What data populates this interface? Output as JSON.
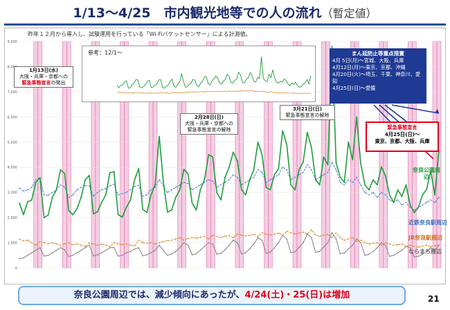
{
  "title": {
    "main": "1/13〜4/25　市内観光地等での人の流れ",
    "sub": "（暫定値）"
  },
  "note": "昨年１２月から導入し、試験運用を行っている「Wi-Fiパケットセンサー」による計測値。",
  "inset": {
    "label": "参考：12/1〜"
  },
  "callouts": [
    {
      "date": "1月13日(水)",
      "body": "大阪・兵庫・京都への",
      "em": "緊急事態宣言",
      "tail": "の発出"
    },
    {
      "date": "2月28日(日)",
      "body": "大阪・兵庫・京都への",
      "em": "",
      "tail": "緊急事態宣言の解除"
    },
    {
      "date": "3月21日(日)",
      "body": "",
      "em": "",
      "tail": "緊急事態宣言の解除"
    }
  ],
  "measures": {
    "heading": "まん延防止等重点措置",
    "lines": [
      "4月 5日(月)〜宮城、大阪、兵庫",
      "4月12日(月)〜東京、京都、沖縄",
      "4月20日(火)〜埼玉、千葉、神奈川、愛知",
      "4月25日(日)〜愛媛"
    ]
  },
  "emergency": {
    "heading": "緊急事態宣言",
    "date": "4月25日(日)〜",
    "areas": "東京、京都、大阪、兵庫"
  },
  "series_tags": {
    "park": "奈良公園周辺",
    "kintetsu": "近鉄奈良駅周辺",
    "jr": "JR奈良駅周辺",
    "naramachi": "ならまち周辺"
  },
  "footer": {
    "prefix": "奈良公園周辺では、減少傾向にあったが、",
    "highlight": "4/24(土)・25(日)は増加"
  },
  "page_number": "21",
  "colors": {
    "park": "#1e9e3a",
    "kintetsu": "#5b8bd6",
    "jr": "#e08a2e",
    "naramachi": "#8c8c8c",
    "band": "#f3c6df",
    "band_edge": "#e05aa0"
  },
  "chart_data": {
    "type": "line",
    "ylim": [
      0,
      9000
    ],
    "yticks": [
      0,
      1000,
      2000,
      3000,
      4000,
      5000,
      6000,
      7000,
      8000,
      9000
    ],
    "days": 103,
    "start_label": "1/13",
    "weekend_day_indices": [
      4,
      5,
      11,
      12,
      18,
      19,
      25,
      26,
      32,
      33,
      39,
      40,
      46,
      47,
      53,
      54,
      60,
      61,
      67,
      68,
      74,
      75,
      81,
      82,
      88,
      89,
      95,
      96,
      101,
      102
    ],
    "series": [
      {
        "key": "park",
        "name": "奈良公園周辺",
        "values": [
          2574,
          2116,
          2626,
          2700,
          3400,
          3588,
          1996,
          2100,
          2800,
          3100,
          3900,
          3750,
          2271,
          2110,
          2350,
          2800,
          3500,
          3674,
          2148,
          2233,
          2600,
          2900,
          3784,
          3826,
          2120,
          2015,
          2400,
          2700,
          3500,
          3950,
          2335,
          2200,
          2900,
          3300,
          5227,
          3426,
          2216,
          2300,
          2800,
          3100,
          3916,
          3734,
          2580,
          2300,
          3100,
          3500,
          4500,
          4409,
          2988,
          2700,
          3600,
          4000,
          4600,
          4250,
          3110,
          2900,
          3500,
          3900,
          5000,
          4500,
          3200,
          3100,
          3700,
          3942,
          5450,
          4900,
          3300,
          3100,
          3900,
          4202,
          5381,
          4800,
          3500,
          3300,
          4400,
          4100,
          8800,
          4177,
          3600,
          3400,
          5000,
          4300,
          6000,
          4131,
          3300,
          3100,
          3500,
          3300,
          4014,
          3657,
          2900,
          2600,
          3100,
          2839,
          3300,
          2500,
          2200,
          2400,
          2894,
          3120,
          3860,
          2900,
          4660
        ]
      },
      {
        "key": "kintetsu",
        "name": "近鉄奈良駅周辺",
        "values": [
          3174,
          3057,
          3100,
          3200,
          3500,
          3588,
          2900,
          2880,
          3000,
          3100,
          3300,
          3207,
          2800,
          2900,
          3100,
          3200,
          3264,
          3260,
          2850,
          3000,
          3100,
          3150,
          3260,
          3320,
          2900,
          2950,
          3000,
          3100,
          3236,
          3280,
          2850,
          2900,
          3100,
          3200,
          3500,
          3260,
          3000,
          3100,
          3200,
          3300,
          3400,
          3350,
          3100,
          3200,
          3300,
          3400,
          3500,
          3450,
          3200,
          3300,
          3400,
          3500,
          3700,
          3600,
          3300,
          3400,
          3500,
          3600,
          3900,
          3800,
          3400,
          3500,
          3600,
          3700,
          4000,
          3900,
          3500,
          3600,
          3700,
          3800,
          4100,
          3900,
          3500,
          3600,
          3700,
          3800,
          4200,
          3900,
          3400,
          3300,
          3500,
          3400,
          3600,
          3300,
          3000,
          2900,
          3000,
          2800,
          3000,
          2900,
          2700,
          2600,
          2700,
          2500,
          2600,
          2400,
          2300,
          2400,
          2500,
          2600,
          2700,
          2600,
          2800
        ]
      },
      {
        "key": "jr",
        "name": "JR奈良駅周辺",
        "values": [
          1141,
          1082,
          1100,
          1000,
          900,
          1042,
          1000,
          962,
          1000,
          950,
          900,
          962,
          1000,
          920,
          950,
          900,
          850,
          1000,
          950,
          900,
          950,
          900,
          850,
          1000,
          960,
          930,
          950,
          900,
          870,
          1100,
          1000,
          980,
          1000,
          950,
          1000,
          1050,
          1080,
          1100,
          1150,
          1200,
          1100,
          1164,
          1200,
          1180,
          1220,
          1250,
          1150,
          1300,
          1250,
          1200,
          1260,
          1280,
          1200,
          1350,
          1300,
          1270,
          1300,
          1330,
          1250,
          1400,
          1330,
          1300,
          1340,
          1380,
          1300,
          1450,
          1400,
          1350,
          1380,
          1420,
          1350,
          1500,
          1320,
          1250,
          1300,
          1330,
          1200,
          1390,
          1200,
          1100,
          1150,
          1200,
          1050,
          1100,
          1000,
          950,
          980,
          1000,
          900,
          1000,
          950,
          900,
          920,
          950,
          850,
          900,
          850,
          820,
          870,
          900,
          850,
          880,
          900
        ]
      },
      {
        "key": "naramachi",
        "name": "ならまち周辺",
        "values": [
          364,
          400,
          500,
          600,
          700,
          800,
          470,
          500,
          600,
          700,
          800,
          717,
          450,
          500,
          600,
          700,
          800,
          900,
          480,
          520,
          600,
          700,
          800,
          809,
          470,
          500,
          600,
          650,
          750,
          800,
          480,
          520,
          600,
          700,
          900,
          700,
          500,
          550,
          650,
          800,
          1000,
          900,
          520,
          560,
          700,
          850,
          1000,
          950,
          540,
          580,
          720,
          900,
          1100,
          1000,
          560,
          600,
          760,
          950,
          1200,
          1100,
          580,
          620,
          800,
          1000,
          1300,
          1150,
          600,
          640,
          820,
          1000,
          1350,
          1200,
          620,
          650,
          830,
          1000,
          1400,
          1150,
          560,
          600,
          750,
          900,
          1150,
          1000,
          500,
          540,
          650,
          800,
          1000,
          900,
          460,
          500,
          600,
          700,
          850,
          800,
          430,
          460,
          550,
          650,
          800,
          700,
          900
        ]
      }
    ]
  }
}
